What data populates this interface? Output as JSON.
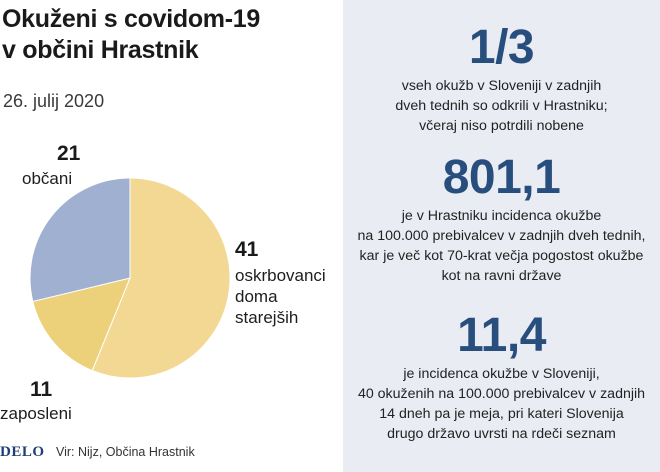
{
  "header": {
    "title_lines": [
      "Okuženi s covidom-19",
      "v občini Hrastnik"
    ],
    "date": "26. julij 2020"
  },
  "chart_data": {
    "type": "pie",
    "title": "Okuženi s covidom-19 v občini Hrastnik",
    "slices": [
      {
        "label_lines": [
          "oskrbovanci",
          "doma",
          "starejših"
        ],
        "value": 41,
        "color": "#f2d892"
      },
      {
        "label_lines": [
          "zaposleni"
        ],
        "value": 11,
        "color": "#ecd17a"
      },
      {
        "label_lines": [
          "občani"
        ],
        "value": 21,
        "color": "#9fb0d1"
      }
    ]
  },
  "labels": {
    "obcani": {
      "num": "21",
      "text": "občani"
    },
    "oskrbovanci": {
      "num": "41",
      "l1": "oskrbovanci",
      "l2": "doma",
      "l3": "starejših"
    },
    "zaposleni": {
      "num": "11",
      "text": "zaposleni"
    }
  },
  "footer": {
    "logo": "DELO",
    "source": "Vir: Nijz, Občina Hrastnik"
  },
  "stats": [
    {
      "value": "1/3",
      "lines": [
        "vseh okužb v Sloveniji v zadnjih",
        "dveh tednih so odkrili v Hrastniku;",
        "včeraj niso potrdili nobene"
      ]
    },
    {
      "value": "801,1",
      "lines": [
        "je v Hrastniku incidenca okužbe",
        "na 100.000 prebivalcev v zadnjih dveh tednih,",
        "kar je več kot 70-krat večja pogostost okužbe",
        "kot na ravni države"
      ]
    },
    {
      "value": "11,4",
      "lines": [
        "je incidenca okužbe v Sloveniji,",
        "40 okuženih na 100.000 prebivalcev v zadnjih",
        "14 dneh pa je meja, pri kateri Slovenija",
        "drugo državo uvrsti na rdeči seznam"
      ]
    }
  ],
  "colors": {
    "accent": "#284e7d",
    "panel": "#e9edf3"
  }
}
